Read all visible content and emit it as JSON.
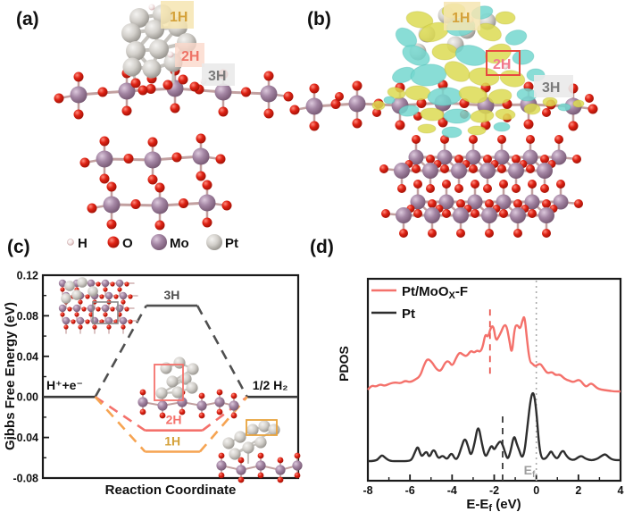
{
  "figure": {
    "panels": {
      "a": {
        "label": "(a)",
        "tags": [
          {
            "text": "1H"
          },
          {
            "text": "2H"
          },
          {
            "text": "3H"
          }
        ]
      },
      "b": {
        "label": "(b)",
        "tags": [
          {
            "text": "1H"
          },
          {
            "text": "2H"
          },
          {
            "text": "3H"
          }
        ]
      },
      "c": {
        "label": "(c)"
      },
      "d": {
        "label": "(d)"
      }
    },
    "atom_legend": [
      {
        "symbol": "H",
        "color": "#F3E4E4"
      },
      {
        "symbol": "O",
        "color": "#DE2214"
      },
      {
        "symbol": "Mo",
        "color": "#A486A4"
      },
      {
        "symbol": "Pt",
        "color": "#D2CFCA"
      }
    ],
    "colors": {
      "tag_1h_bg": "#F6E5B2",
      "tag_1h_text": "#D4A139",
      "tag_2h_bg": "#FBD8CA",
      "tag_2h_text": "#EE7467",
      "tag_2h_box_stroke": "#E8473F",
      "tag_2h_b_text": "#F2788C",
      "tag_3h_bg": "#EAEAEA",
      "tag_3h_text": "#7A7A7A",
      "iso_yellow": "#DCDA52",
      "iso_cyan": "#74D7CF",
      "curve_salmon": "#F4716B",
      "curve_black": "#2E2E2E",
      "level_orange": "#F6A452",
      "level_gray": "#4F4F4F"
    }
  },
  "chart_data": [
    {
      "id": "gibbs-diagram",
      "type": "line",
      "variant": "energy-level-diagram",
      "title": "",
      "ylabel": "Gibbs Free Energy (eV)",
      "xlabel": "Reaction Coordinate",
      "ylim": [
        -0.08,
        0.12
      ],
      "yticks": [
        [
          "0.12",
          0.12
        ],
        [
          "0.08",
          0.08
        ],
        [
          "0.04",
          0.04
        ],
        [
          "0.00",
          0.0
        ],
        [
          "-0.04",
          -0.04
        ],
        [
          "-0.08",
          -0.08
        ]
      ],
      "initial": {
        "label": "H⁺+e⁻",
        "value": 0.0,
        "x_span": [
          0.0,
          0.205
        ],
        "color": "#3A3A3A"
      },
      "final": {
        "label": "1/2 H₂",
        "value": 0.0,
        "x_span": [
          0.8,
          1.0
        ],
        "color": "#3A3A3A"
      },
      "intermediates": [
        {
          "label": "3H",
          "value": 0.09,
          "x_span": [
            0.405,
            0.605
          ],
          "color": "#4F4F4F",
          "label_color": "#4D4D4D"
        },
        {
          "label": "2H",
          "value": -0.033,
          "x_span": [
            0.4,
            0.625
          ],
          "color": "#F4716B",
          "label_color": "#F4716B"
        },
        {
          "label": "1H",
          "value": -0.054,
          "x_span": [
            0.4,
            0.615
          ],
          "color": "#F6A452",
          "label_color": "#D4A139"
        }
      ]
    },
    {
      "id": "pdos",
      "type": "line",
      "title": "",
      "ylabel": "PDOS",
      "xlabel_parts": {
        "pre": "E-E",
        "sub": "f",
        "post": " (eV)"
      },
      "xlim": [
        -8,
        4
      ],
      "xticks": [
        [
          "-8",
          -8
        ],
        [
          "-6",
          -6
        ],
        [
          "-4",
          -4
        ],
        [
          "-2",
          -2
        ],
        [
          "0",
          0
        ],
        [
          "2",
          2
        ],
        [
          "4",
          4
        ]
      ],
      "legend_position": "top-left",
      "legend": [
        {
          "parts": {
            "pre": "Pt/MoO",
            "sub": "X",
            "post": "-F"
          },
          "color": "#F4716B"
        },
        {
          "parts": {
            "pre": "Pt",
            "sub": "",
            "post": ""
          },
          "color": "#2E2E2E"
        }
      ],
      "series": [
        {
          "name": "Pt/MoOX-F",
          "color": "#F4716B",
          "points": [
            [
              -8,
              0.451
            ],
            [
              -7.83,
              0.473
            ],
            [
              -7.62,
              0.465
            ],
            [
              -7.41,
              0.478
            ],
            [
              -7.2,
              0.469
            ],
            [
              -6.94,
              0.482
            ],
            [
              -6.69,
              0.487
            ],
            [
              -6.44,
              0.482
            ],
            [
              -6.23,
              0.496
            ],
            [
              -6.01,
              0.487
            ],
            [
              -5.76,
              0.5
            ],
            [
              -5.51,
              0.518
            ],
            [
              -5.34,
              0.571
            ],
            [
              -5.17,
              0.606
            ],
            [
              -4.96,
              0.588
            ],
            [
              -4.75,
              0.553
            ],
            [
              -4.54,
              0.54
            ],
            [
              -4.32,
              0.588
            ],
            [
              -4.16,
              0.593
            ],
            [
              -3.99,
              0.566
            ],
            [
              -3.82,
              0.606
            ],
            [
              -3.65,
              0.637
            ],
            [
              -3.48,
              0.624
            ],
            [
              -3.31,
              0.615
            ],
            [
              -3.1,
              0.646
            ],
            [
              -2.97,
              0.633
            ],
            [
              -2.8,
              0.646
            ],
            [
              -2.68,
              0.637
            ],
            [
              -2.55,
              0.659
            ],
            [
              -2.42,
              0.73
            ],
            [
              -2.3,
              0.708
            ],
            [
              -2.17,
              0.757
            ],
            [
              -2.04,
              0.77
            ],
            [
              -1.92,
              0.69
            ],
            [
              -1.79,
              0.712
            ],
            [
              -1.66,
              0.739
            ],
            [
              -1.54,
              0.77
            ],
            [
              -1.41,
              0.77
            ],
            [
              -1.28,
              0.695
            ],
            [
              -1.16,
              0.619
            ],
            [
              -1.03,
              0.761
            ],
            [
              -0.9,
              0.774
            ],
            [
              -0.77,
              0.748
            ],
            [
              -0.65,
              0.796
            ],
            [
              -0.56,
              0.819
            ],
            [
              -0.44,
              0.695
            ],
            [
              -0.31,
              0.588
            ],
            [
              -0.18,
              0.58
            ],
            [
              -0.06,
              0.566
            ],
            [
              0.07,
              0.575
            ],
            [
              0.2,
              0.58
            ],
            [
              0.37,
              0.553
            ],
            [
              0.53,
              0.531
            ],
            [
              0.75,
              0.54
            ],
            [
              0.91,
              0.522
            ],
            [
              1.13,
              0.527
            ],
            [
              1.34,
              0.504
            ],
            [
              1.55,
              0.496
            ],
            [
              1.76,
              0.487
            ],
            [
              1.97,
              0.5
            ],
            [
              2.1,
              0.496
            ],
            [
              2.27,
              0.473
            ],
            [
              2.39,
              0.465
            ],
            [
              2.56,
              0.482
            ],
            [
              2.69,
              0.478
            ],
            [
              2.86,
              0.46
            ],
            [
              3.07,
              0.451
            ],
            [
              3.37,
              0.447
            ],
            [
              3.7,
              0.442
            ],
            [
              4,
              0.442
            ]
          ]
        },
        {
          "name": "Pt",
          "color": "#2E2E2E",
          "points": [
            [
              -8,
              0.097
            ],
            [
              -7.62,
              0.097
            ],
            [
              -7.45,
              0.115
            ],
            [
              -7.32,
              0.128
            ],
            [
              -7.15,
              0.111
            ],
            [
              -6.94,
              0.097
            ],
            [
              -6.56,
              0.097
            ],
            [
              -6.13,
              0.097
            ],
            [
              -5.92,
              0.102
            ],
            [
              -5.76,
              0.142
            ],
            [
              -5.63,
              0.173
            ],
            [
              -5.51,
              0.133
            ],
            [
              -5.42,
              0.119
            ],
            [
              -5.21,
              0.15
            ],
            [
              -5.08,
              0.111
            ],
            [
              -4.87,
              0.164
            ],
            [
              -4.66,
              0.106
            ],
            [
              -4.45,
              0.128
            ],
            [
              -4.24,
              0.102
            ],
            [
              -4.03,
              0.142
            ],
            [
              -3.86,
              0.106
            ],
            [
              -3.73,
              0.111
            ],
            [
              -3.56,
              0.164
            ],
            [
              -3.39,
              0.217
            ],
            [
              -3.22,
              0.164
            ],
            [
              -3.1,
              0.119
            ],
            [
              -2.93,
              0.186
            ],
            [
              -2.76,
              0.283
            ],
            [
              -2.59,
              0.186
            ],
            [
              -2.42,
              0.111
            ],
            [
              -2.25,
              0.15
            ],
            [
              -2.12,
              0.177
            ],
            [
              -2.0,
              0.15
            ],
            [
              -1.87,
              0.177
            ],
            [
              -1.7,
              0.199
            ],
            [
              -1.58,
              0.173
            ],
            [
              -1.49,
              0.142
            ],
            [
              -1.36,
              0.102
            ],
            [
              -1.23,
              0.142
            ],
            [
              -1.06,
              0.23
            ],
            [
              -0.94,
              0.186
            ],
            [
              -0.81,
              0.15
            ],
            [
              -0.68,
              0.111
            ],
            [
              -0.56,
              0.142
            ],
            [
              -0.44,
              0.252
            ],
            [
              -0.27,
              0.407
            ],
            [
              -0.14,
              0.447
            ],
            [
              -0.01,
              0.363
            ],
            [
              0.12,
              0.186
            ],
            [
              0.24,
              0.111
            ],
            [
              0.41,
              0.106
            ],
            [
              0.58,
              0.128
            ],
            [
              0.7,
              0.15
            ],
            [
              0.83,
              0.124
            ],
            [
              1.0,
              0.106
            ],
            [
              1.17,
              0.142
            ],
            [
              1.29,
              0.15
            ],
            [
              1.42,
              0.124
            ],
            [
              1.59,
              0.106
            ],
            [
              1.8,
              0.102
            ],
            [
              1.97,
              0.115
            ],
            [
              2.14,
              0.124
            ],
            [
              2.31,
              0.111
            ],
            [
              2.52,
              0.102
            ],
            [
              2.73,
              0.102
            ],
            [
              2.94,
              0.111
            ],
            [
              3.11,
              0.124
            ],
            [
              3.28,
              0.133
            ],
            [
              3.45,
              0.115
            ],
            [
              3.66,
              0.102
            ],
            [
              4,
              0.102
            ]
          ]
        }
      ],
      "annotations": [
        {
          "type": "vline",
          "x": -2.2,
          "line": "dashed",
          "color": "#E8554E",
          "span": [
            0.53,
            0.87
          ]
        },
        {
          "type": "vline",
          "x": -1.6,
          "line": "dashed",
          "color": "#3A3A3A",
          "span": [
            0.0,
            0.34
          ]
        },
        {
          "type": "vline",
          "x": 0.0,
          "line": "dotted",
          "color": "#ABABAB",
          "span": [
            0.0,
            1.0
          ],
          "label_parts": {
            "pre": "E",
            "sub": "f"
          }
        }
      ]
    }
  ]
}
